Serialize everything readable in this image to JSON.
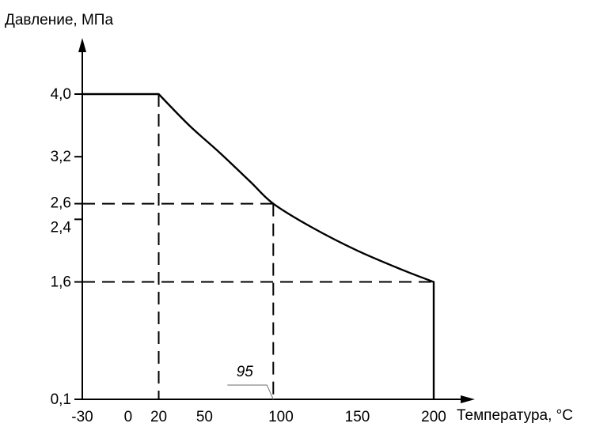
{
  "chart_data": {
    "type": "line",
    "title": "",
    "ylabel": "Давление, МПа",
    "xlabel": "Температура, °С",
    "x_ticks": [
      {
        "value": -30,
        "label": "-30"
      },
      {
        "value": 0,
        "label": "0"
      },
      {
        "value": 20,
        "label": "20"
      },
      {
        "value": 50,
        "label": "50"
      },
      {
        "value": 100,
        "label": "100"
      },
      {
        "value": 150,
        "label": "150"
      },
      {
        "value": 200,
        "label": "200"
      }
    ],
    "y_ticks": [
      {
        "value": 0.1,
        "label": "0,1"
      },
      {
        "value": 1.6,
        "label": "1,6"
      },
      {
        "value": 2.4,
        "label": "2,4"
      },
      {
        "value": 2.6,
        "label": "2,6"
      },
      {
        "value": 3.2,
        "label": "3,2"
      },
      {
        "value": 4.0,
        "label": "4,0"
      }
    ],
    "series": [
      {
        "x": [
          -30,
          20,
          40,
          60,
          80,
          95,
          120,
          150,
          180,
          200,
          200
        ],
        "y": [
          4.0,
          4.0,
          3.6,
          3.25,
          2.88,
          2.6,
          2.3,
          2.0,
          1.75,
          1.6,
          0.1
        ]
      }
    ],
    "reference_lines": [
      {
        "from": [
          -30,
          2.6
        ],
        "to": [
          95,
          2.6
        ]
      },
      {
        "from": [
          -30,
          1.6
        ],
        "to": [
          200,
          1.6
        ]
      },
      {
        "from": [
          20,
          4.0
        ],
        "to": [
          20,
          0.1
        ]
      },
      {
        "from": [
          95,
          2.6
        ],
        "to": [
          95,
          0.1
        ]
      }
    ],
    "annotations": [
      {
        "text": "95",
        "x": 95,
        "y": 0.1
      }
    ],
    "xlim": [
      -30,
      200
    ],
    "ylim": [
      0.1,
      4.0
    ],
    "grid": false,
    "legend": "none",
    "colors": {
      "line": "#000000",
      "axis": "#000000",
      "reference": "#000000",
      "annotation_leader": "#888888"
    }
  }
}
